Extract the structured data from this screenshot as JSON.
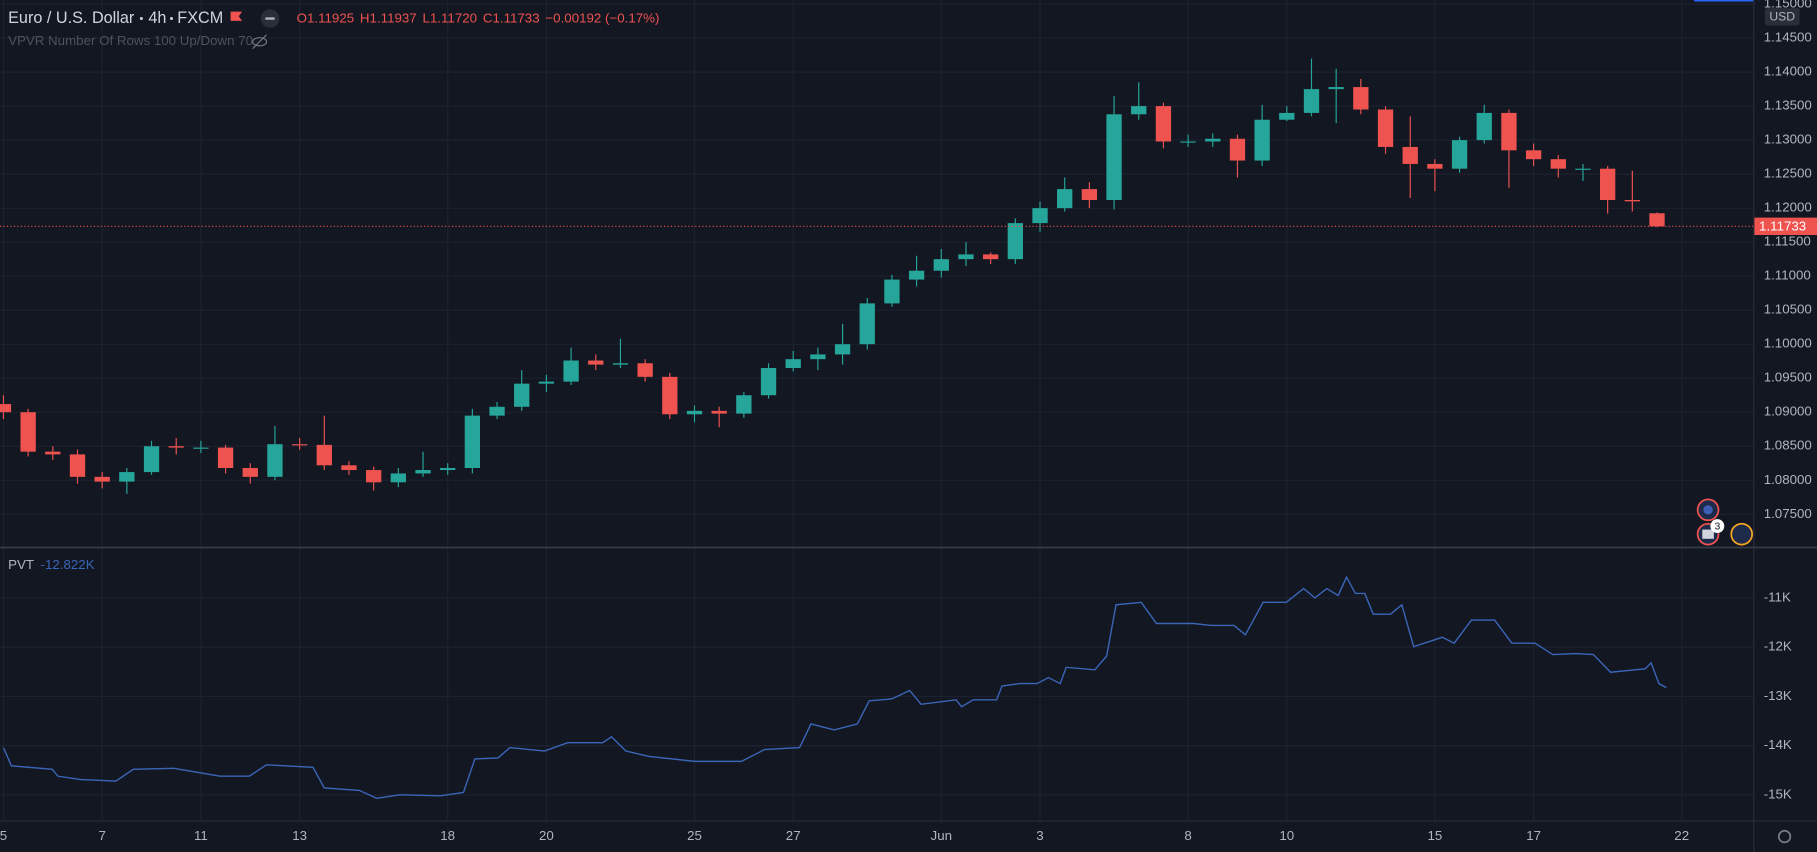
{
  "header": {
    "symbol": "Euro / U.S. Dollar",
    "interval": "4h",
    "source": "FXCM",
    "ohlc": [
      {
        "label": "O",
        "value": "1.11925"
      },
      {
        "label": "H",
        "value": "1.11937"
      },
      {
        "label": "L",
        "value": "1.11720"
      },
      {
        "label": "C",
        "value": "1.11733"
      }
    ],
    "change": "−0.00192 (−0.17%)",
    "indicator": "VPVR Number Of Rows 100 Up/Down 70",
    "currency": "USD",
    "event_badge": "3"
  },
  "chart_data": [
    {
      "type": "candlestick",
      "up_color": "#26a69a",
      "down_color": "#ef5350",
      "xlim": [
        -0.07,
        35.45
      ],
      "ylim": [
        1.0702,
        1.1506
      ],
      "yticks": [
        {
          "value": 1.075,
          "label": "1.07500"
        },
        {
          "value": 1.08,
          "label": "1.08000"
        },
        {
          "value": 1.085,
          "label": "1.08500"
        },
        {
          "value": 1.09,
          "label": "1.09000"
        },
        {
          "value": 1.095,
          "label": "1.09500"
        },
        {
          "value": 1.1,
          "label": "1.10000"
        },
        {
          "value": 1.105,
          "label": "1.10500"
        },
        {
          "value": 1.11,
          "label": "1.11000"
        },
        {
          "value": 1.115,
          "label": "1.11500"
        },
        {
          "value": 1.12,
          "label": "1.12000"
        },
        {
          "value": 1.125,
          "label": "1.12500"
        },
        {
          "value": 1.13,
          "label": "1.13000"
        },
        {
          "value": 1.135,
          "label": "1.13500"
        },
        {
          "value": 1.14,
          "label": "1.14000"
        },
        {
          "value": 1.145,
          "label": "1.14500"
        },
        {
          "value": 1.15,
          "label": "1.15000"
        }
      ],
      "grid": true,
      "price_line": {
        "value": 1.11733,
        "label": "1.11733"
      },
      "x": [
        0,
        0.5,
        1,
        1.5,
        2,
        2.5,
        3,
        3.5,
        4,
        4.5,
        5,
        5.5,
        6,
        6.5,
        7,
        7.5,
        8,
        8.5,
        9,
        9.5,
        10,
        10.5,
        11,
        11.5,
        12,
        12.5,
        13,
        13.5,
        14,
        14.5,
        15,
        15.5,
        16,
        16.5,
        17,
        17.5,
        18,
        18.5,
        19,
        19.5,
        20,
        20.5,
        21,
        21.5,
        22,
        22.5,
        23,
        23.5,
        24,
        24.5,
        25,
        25.5,
        26,
        26.5,
        27,
        27.5,
        28,
        28.5,
        29,
        29.5,
        30,
        30.5,
        31,
        31.5,
        32,
        32.5,
        33,
        33.5
      ],
      "open": [
        1.0912,
        1.09,
        1.0842,
        1.0838,
        1.0805,
        1.0798,
        1.0812,
        1.085,
        1.0848,
        1.0848,
        1.0818,
        1.0805,
        1.0853,
        1.0852,
        1.0822,
        1.0815,
        1.0797,
        1.081,
        1.0815,
        1.0818,
        1.0895,
        1.0908,
        1.0942,
        1.0945,
        1.0976,
        1.097,
        1.0972,
        1.0952,
        1.0897,
        1.0902,
        1.0898,
        1.0925,
        1.0965,
        1.0978,
        1.0985,
        1.1,
        1.106,
        1.1095,
        1.1108,
        1.1125,
        1.1132,
        1.1125,
        1.1178,
        1.12,
        1.1228,
        1.1212,
        1.1338,
        1.135,
        1.1298,
        1.1298,
        1.1302,
        1.127,
        1.133,
        1.134,
        1.1375,
        1.1378,
        1.1345,
        1.129,
        1.1265,
        1.1258,
        1.13,
        1.134,
        1.1285,
        1.1272,
        1.1258,
        1.1258,
        1.1212,
        1.11925
      ],
      "high": [
        1.0925,
        1.0905,
        1.085,
        1.0845,
        1.0812,
        1.0818,
        1.0858,
        1.0862,
        1.0858,
        1.0852,
        1.0825,
        1.088,
        1.0862,
        1.0895,
        1.0828,
        1.082,
        1.0818,
        1.0842,
        1.0825,
        1.0905,
        1.0915,
        1.0962,
        1.0955,
        1.0995,
        1.0985,
        1.1008,
        1.0978,
        1.0958,
        1.091,
        1.0908,
        1.093,
        1.0972,
        1.099,
        1.0995,
        1.103,
        1.1068,
        1.1102,
        1.113,
        1.114,
        1.115,
        1.1135,
        1.1185,
        1.121,
        1.1245,
        1.1238,
        1.1365,
        1.1385,
        1.1355,
        1.1308,
        1.131,
        1.1308,
        1.1352,
        1.135,
        1.142,
        1.1405,
        1.139,
        1.135,
        1.1335,
        1.1272,
        1.1305,
        1.1352,
        1.1345,
        1.1295,
        1.1278,
        1.1265,
        1.1262,
        1.1255,
        1.11937
      ],
      "low": [
        1.089,
        1.0835,
        1.083,
        1.0795,
        1.0788,
        1.078,
        1.0808,
        1.0838,
        1.084,
        1.081,
        1.0795,
        1.08,
        1.0845,
        1.0815,
        1.0808,
        1.0785,
        1.079,
        1.0805,
        1.0808,
        1.081,
        1.089,
        1.0902,
        1.093,
        1.094,
        1.0962,
        1.0965,
        1.0945,
        1.089,
        1.0885,
        1.0878,
        1.0892,
        1.092,
        1.096,
        1.0962,
        1.097,
        1.0992,
        1.1055,
        1.1085,
        1.1098,
        1.1115,
        1.1118,
        1.1118,
        1.1165,
        1.1195,
        1.12,
        1.1198,
        1.133,
        1.1288,
        1.129,
        1.129,
        1.1245,
        1.1262,
        1.1328,
        1.1335,
        1.1325,
        1.1338,
        1.128,
        1.1215,
        1.1225,
        1.1252,
        1.1295,
        1.123,
        1.1262,
        1.1245,
        1.124,
        1.1192,
        1.1195,
        1.1172
      ],
      "close": [
        1.09,
        1.0842,
        1.0838,
        1.0805,
        1.0798,
        1.0812,
        1.085,
        1.0848,
        1.0848,
        1.0818,
        1.0805,
        1.0853,
        1.0852,
        1.0822,
        1.0815,
        1.0797,
        1.081,
        1.0815,
        1.0818,
        1.0895,
        1.0908,
        1.0942,
        1.0945,
        1.0976,
        1.097,
        1.0972,
        1.0952,
        1.0897,
        1.0902,
        1.0898,
        1.0925,
        1.0965,
        1.0978,
        1.0985,
        1.1,
        1.106,
        1.1095,
        1.1108,
        1.1125,
        1.1132,
        1.1125,
        1.1178,
        1.12,
        1.1228,
        1.1212,
        1.1338,
        1.135,
        1.1298,
        1.1298,
        1.1302,
        1.127,
        1.133,
        1.134,
        1.1375,
        1.1378,
        1.1345,
        1.129,
        1.1265,
        1.1258,
        1.13,
        1.134,
        1.1285,
        1.1272,
        1.1258,
        1.1258,
        1.1212,
        1.121,
        1.11733
      ]
    },
    {
      "type": "line",
      "color": "#3a66b8",
      "legend": {
        "name": "PVT",
        "value": "-12.822K"
      },
      "xlim": [
        -0.07,
        35.45
      ],
      "ylim": [
        -15518,
        -9988
      ],
      "xticks": [
        {
          "value": 0,
          "label": "5"
        },
        {
          "value": 2,
          "label": "7"
        },
        {
          "value": 4,
          "label": "11"
        },
        {
          "value": 6,
          "label": "13"
        },
        {
          "value": 9,
          "label": "18"
        },
        {
          "value": 11,
          "label": "20"
        },
        {
          "value": 14,
          "label": "25"
        },
        {
          "value": 16,
          "label": "27"
        },
        {
          "value": 19,
          "label": "Jun"
        },
        {
          "value": 21,
          "label": "3"
        },
        {
          "value": 24,
          "label": "8"
        },
        {
          "value": 26,
          "label": "10"
        },
        {
          "value": 29,
          "label": "15"
        },
        {
          "value": 31,
          "label": "17"
        },
        {
          "value": 34,
          "label": "22"
        }
      ],
      "yticks": [
        {
          "value": -11000,
          "label": "-11K"
        },
        {
          "value": -12000,
          "label": "-12K"
        },
        {
          "value": -13000,
          "label": "-13K"
        },
        {
          "value": -14000,
          "label": "-14K"
        },
        {
          "value": -15000,
          "label": "-15K"
        }
      ],
      "grid": true,
      "x": [
        0,
        0.16,
        0.99,
        1.1,
        1.57,
        2.28,
        2.63,
        3.45,
        4.39,
        4.98,
        5.33,
        6.27,
        6.5,
        7.21,
        7.56,
        8.03,
        8.85,
        9.32,
        9.55,
        10.02,
        10.26,
        10.96,
        11.43,
        12.14,
        12.32,
        12.61,
        13.08,
        14.01,
        14.95,
        15.42,
        16.13,
        16.36,
        16.83,
        17.3,
        17.54,
        18.0,
        18.36,
        18.59,
        19.3,
        19.41,
        19.65,
        20.12,
        20.23,
        20.59,
        20.94,
        21.17,
        21.41,
        21.53,
        22.11,
        22.35,
        22.54,
        23.05,
        23.36,
        24.11,
        24.46,
        24.93,
        25.16,
        25.52,
        25.99,
        26.34,
        26.57,
        26.81,
        27.04,
        27.21,
        27.39,
        27.58,
        27.75,
        28.1,
        28.33,
        28.57,
        29.15,
        29.39,
        29.74,
        30.21,
        30.56,
        31.03,
        31.39,
        31.86,
        32.21,
        32.56,
        33.26,
        33.38,
        33.54,
        33.69
      ],
      "values": [
        -14040,
        -14410,
        -14480,
        -14620,
        -14690,
        -14720,
        -14480,
        -14460,
        -14620,
        -14620,
        -14390,
        -14440,
        -14860,
        -14910,
        -15070,
        -15000,
        -15020,
        -14950,
        -14270,
        -14250,
        -14040,
        -14110,
        -13940,
        -13940,
        -13820,
        -14110,
        -14220,
        -14320,
        -14320,
        -14080,
        -14040,
        -13560,
        -13680,
        -13560,
        -13090,
        -13050,
        -12880,
        -13160,
        -13070,
        -13210,
        -13070,
        -13070,
        -12790,
        -12740,
        -12740,
        -12620,
        -12740,
        -12410,
        -12460,
        -12180,
        -11140,
        -11090,
        -11520,
        -11520,
        -11560,
        -11560,
        -11750,
        -11090,
        -11090,
        -10810,
        -11000,
        -10810,
        -10950,
        -10580,
        -10910,
        -10910,
        -11330,
        -11330,
        -11140,
        -11990,
        -11800,
        -11920,
        -11450,
        -11450,
        -11920,
        -11920,
        -12150,
        -12130,
        -12150,
        -12510,
        -12440,
        -12320,
        -12740,
        -12822
      ]
    }
  ]
}
